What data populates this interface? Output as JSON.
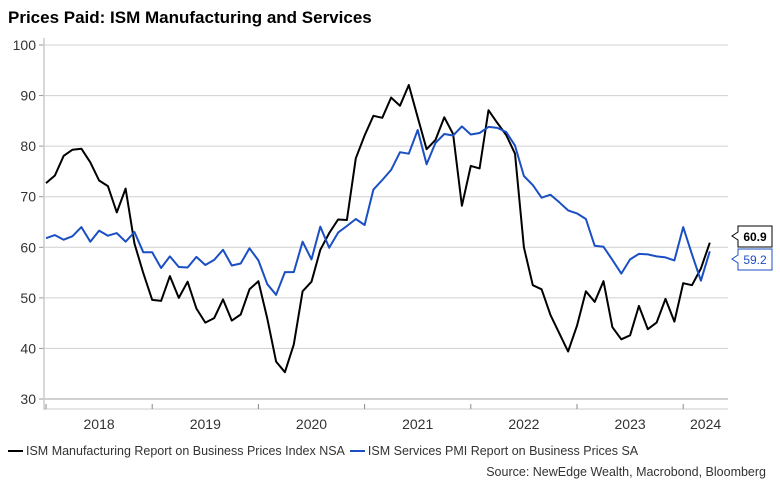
{
  "chart_data": {
    "type": "line",
    "title": "Prices Paid: ISM Manufacturing and Services",
    "xlabel": "",
    "ylabel": "",
    "ylim": [
      30,
      100
    ],
    "yticks": [
      30,
      40,
      50,
      60,
      70,
      80,
      90,
      100
    ],
    "xtick_labels": [
      "2018",
      "2019",
      "2020",
      "2021",
      "2022",
      "2023",
      "2024"
    ],
    "x_start": "2018-01",
    "x_end": "2024-02",
    "grid": true,
    "legend_position": "bottom",
    "source": "Source: NewEdge Wealth, Macrobond, Bloomberg",
    "series": [
      {
        "name": "ISM Manufacturing Report on Business Prices Index NSA",
        "color": "#000000",
        "last_label": "60.9",
        "values": [
          72.7,
          74.2,
          78.1,
          79.3,
          79.5,
          76.8,
          73.2,
          72.1,
          66.9,
          71.6,
          60.7,
          54.9,
          49.6,
          49.4,
          54.3,
          50.0,
          53.2,
          47.9,
          45.1,
          46.0,
          49.7,
          45.5,
          46.7,
          51.7,
          53.3,
          45.9,
          37.4,
          35.3,
          40.8,
          51.3,
          53.2,
          59.5,
          62.8,
          65.5,
          65.4,
          77.6,
          82.1,
          86.0,
          85.6,
          89.6,
          88.0,
          92.1,
          85.7,
          79.4,
          81.2,
          85.7,
          82.4,
          68.2,
          76.1,
          75.6,
          87.1,
          84.6,
          82.2,
          78.5,
          60.0,
          52.5,
          51.7,
          46.6,
          43.0,
          39.4,
          44.5,
          51.3,
          49.2,
          53.3,
          44.2,
          41.8,
          42.6,
          48.4,
          43.8,
          45.1,
          49.8,
          45.3,
          52.9,
          52.5,
          55.8,
          60.9
        ],
        "annotation": "60.9"
      },
      {
        "name": "ISM Services PMI Report on Business Prices SA",
        "color": "#1a4fc4",
        "last_label": "59.2",
        "values": [
          61.8,
          62.4,
          61.5,
          62.2,
          64.0,
          61.1,
          63.3,
          62.3,
          62.8,
          61.1,
          63.0,
          59.0,
          59.0,
          55.9,
          58.2,
          56.1,
          56.0,
          58.1,
          56.5,
          57.5,
          59.5,
          56.4,
          56.8,
          59.8,
          57.4,
          52.7,
          50.6,
          55.1,
          55.1,
          61.1,
          57.6,
          64.1,
          59.9,
          62.9,
          64.2,
          65.6,
          64.4,
          71.4,
          73.3,
          75.3,
          78.8,
          78.5,
          83.2,
          76.4,
          80.6,
          82.4,
          82.1,
          83.9,
          82.3,
          82.6,
          83.8,
          83.6,
          82.8,
          80.1,
          74.1,
          72.3,
          69.8,
          70.4,
          68.9,
          67.3,
          66.7,
          65.6,
          60.3,
          60.1,
          57.5,
          54.8,
          57.6,
          58.7,
          58.6,
          58.2,
          58.0,
          57.4,
          64.0,
          58.6,
          53.4,
          59.2
        ],
        "annotation": "59.2"
      }
    ]
  }
}
